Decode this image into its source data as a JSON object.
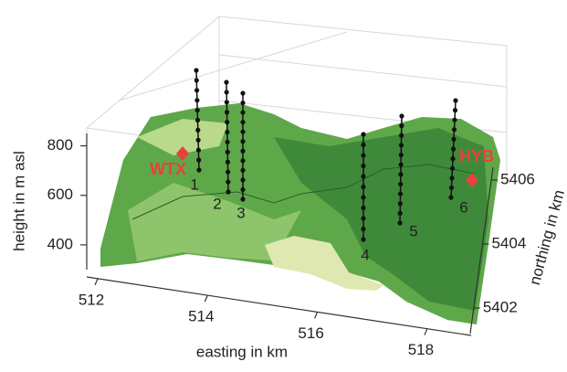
{
  "chart_data": {
    "type": "surface3d",
    "xlabel": "easting in km",
    "ylabel": "northing in km",
    "zlabel": "height in m asl",
    "xlim": [
      511.8,
      518.8
    ],
    "xticks": [
      512,
      514,
      516,
      518
    ],
    "ylim": [
      5401.2,
      5406.4
    ],
    "yticks": [
      5402,
      5404,
      5406
    ],
    "zlim": [
      300,
      850
    ],
    "zticks": [
      400,
      600,
      800
    ],
    "stations": [
      "WTX",
      "HYB"
    ],
    "profiles": [
      "1",
      "2",
      "3",
      "4",
      "5",
      "6"
    ],
    "station_color": "#e8413c"
  }
}
